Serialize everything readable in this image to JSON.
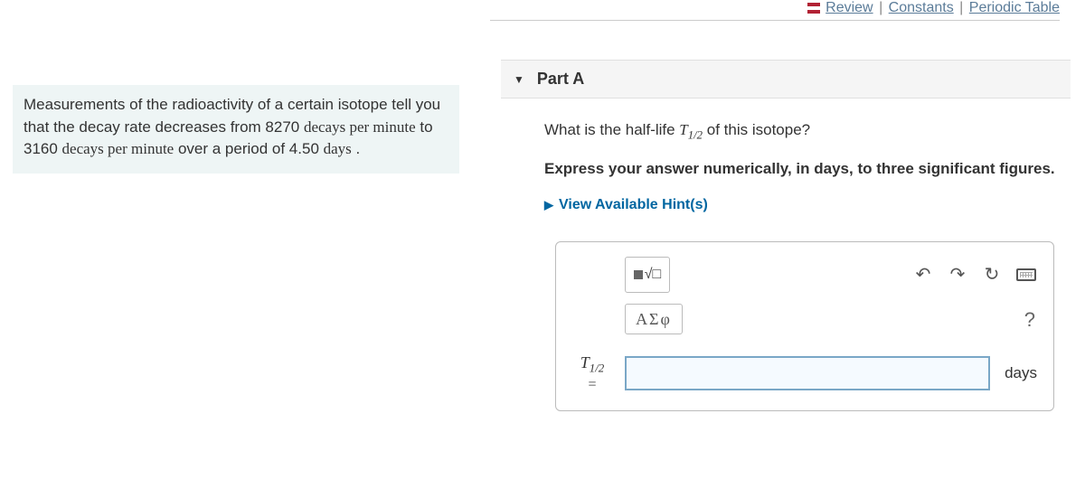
{
  "topnav": {
    "review": "Review",
    "constants": "Constants",
    "periodic": "Periodic Table"
  },
  "problem": {
    "text1": "Measurements of the radioactivity of a certain isotope tell you that the decay rate decreases from 8270 ",
    "serif1": "decays per minute",
    "text2": " to 3160 ",
    "serif2": "decays per minute",
    "text3": " over a period of 4.50 ",
    "serif3": "days",
    "text4": " ."
  },
  "part": {
    "label": "Part A",
    "question_pre": "What is the half-life ",
    "var_T": "T",
    "var_sub": "1/2",
    "question_post": " of this isotope?",
    "instruction": "Express your answer numerically, in days, to three significant figures.",
    "hints_label": "View Available Hint(s)"
  },
  "answerbox": {
    "greek_label": "ΑΣφ",
    "var_T": "T",
    "var_sub": "1/2",
    "eq": "=",
    "unit": "days",
    "value": ""
  }
}
